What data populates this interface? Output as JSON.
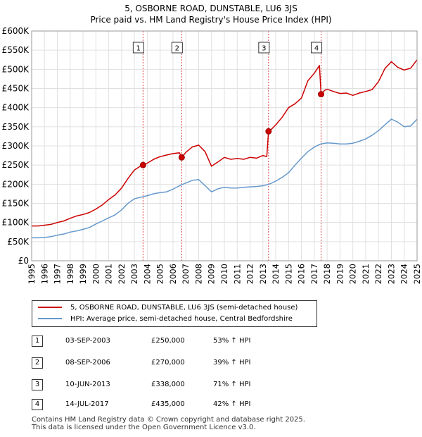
{
  "title_line1": "5, OSBORNE ROAD, DUNSTABLE, LU6 3JS",
  "title_line2": "Price paid vs. HM Land Registry's House Price Index (HPI)",
  "chart_data": {
    "type": "line",
    "title": "5, OSBORNE ROAD, DUNSTABLE, LU6 3JS",
    "subtitle": "Price paid vs. HM Land Registry's House Price Index (HPI)",
    "xlim": [
      1995,
      2025
    ],
    "ylim": [
      0,
      600000
    ],
    "x_ticks": [
      1995,
      1996,
      1997,
      1998,
      1999,
      2000,
      2001,
      2002,
      2003,
      2004,
      2005,
      2006,
      2007,
      2008,
      2009,
      2010,
      2011,
      2012,
      2013,
      2014,
      2015,
      2016,
      2017,
      2018,
      2019,
      2020,
      2021,
      2022,
      2023,
      2024,
      2025
    ],
    "y_ticks": [
      {
        "value": 0,
        "label": "£0"
      },
      {
        "value": 50000,
        "label": "£50K"
      },
      {
        "value": 100000,
        "label": "£100K"
      },
      {
        "value": 150000,
        "label": "£150K"
      },
      {
        "value": 200000,
        "label": "£200K"
      },
      {
        "value": 250000,
        "label": "£250K"
      },
      {
        "value": 300000,
        "label": "£300K"
      },
      {
        "value": 350000,
        "label": "£350K"
      },
      {
        "value": 400000,
        "label": "£400K"
      },
      {
        "value": 450000,
        "label": "£450K"
      },
      {
        "value": 500000,
        "label": "£500K"
      },
      {
        "value": 550000,
        "label": "£550K"
      },
      {
        "value": 600000,
        "label": "£600K"
      }
    ],
    "grid": true,
    "series": [
      {
        "name": "5, OSBORNE ROAD, DUNSTABLE, LU6 3JS (semi-detached house)",
        "color": "#cc0000",
        "x": [
          1995.0,
          1995.5,
          1996.0,
          1996.5,
          1997.0,
          1997.5,
          1998.0,
          1998.5,
          1999.0,
          1999.5,
          2000.0,
          2000.5,
          2001.0,
          2001.5,
          2002.0,
          2002.5,
          2003.0,
          2003.5,
          2003.67,
          2004.0,
          2004.5,
          2005.0,
          2005.5,
          2006.0,
          2006.5,
          2006.68,
          2007.0,
          2007.5,
          2008.0,
          2008.5,
          2009.0,
          2009.5,
          2010.0,
          2010.5,
          2011.0,
          2011.5,
          2012.0,
          2012.5,
          2013.0,
          2013.3,
          2013.44,
          2013.7,
          2014.0,
          2014.5,
          2015.0,
          2015.5,
          2016.0,
          2016.5,
          2017.0,
          2017.4,
          2017.53,
          2017.8,
          2018.0,
          2018.5,
          2019.0,
          2019.5,
          2020.0,
          2020.5,
          2021.0,
          2021.5,
          2022.0,
          2022.5,
          2023.0,
          2023.5,
          2024.0,
          2024.5,
          2025.0
        ],
        "values": [
          91000,
          91000,
          93000,
          95000,
          100000,
          104000,
          111000,
          117000,
          121000,
          126000,
          135000,
          146000,
          160000,
          172000,
          190000,
          215000,
          237000,
          248000,
          250000,
          255000,
          265000,
          272000,
          276000,
          280000,
          282000,
          270000,
          283000,
          297000,
          302000,
          285000,
          247000,
          258000,
          270000,
          265000,
          267000,
          265000,
          270000,
          268000,
          275000,
          272000,
          338000,
          345000,
          355000,
          375000,
          400000,
          410000,
          425000,
          470000,
          490000,
          510000,
          435000,
          445000,
          448000,
          442000,
          437000,
          438000,
          432000,
          438000,
          442000,
          447000,
          468000,
          502000,
          520000,
          505000,
          498000,
          503000,
          525000
        ]
      },
      {
        "name": "HPI: Average price, semi-detached house, Central Bedfordshire",
        "color": "#6699cc",
        "x": [
          1995.0,
          1995.5,
          1996.0,
          1996.5,
          1997.0,
          1997.5,
          1998.0,
          1998.5,
          1999.0,
          1999.5,
          2000.0,
          2000.5,
          2001.0,
          2001.5,
          2002.0,
          2002.5,
          2003.0,
          2003.5,
          2004.0,
          2004.5,
          2005.0,
          2005.5,
          2006.0,
          2006.5,
          2007.0,
          2007.5,
          2008.0,
          2008.5,
          2009.0,
          2009.5,
          2010.0,
          2010.5,
          2011.0,
          2011.5,
          2012.0,
          2012.5,
          2013.0,
          2013.5,
          2014.0,
          2014.5,
          2015.0,
          2015.5,
          2016.0,
          2016.5,
          2017.0,
          2017.5,
          2018.0,
          2018.5,
          2019.0,
          2019.5,
          2020.0,
          2020.5,
          2021.0,
          2021.5,
          2022.0,
          2022.5,
          2023.0,
          2023.5,
          2024.0,
          2024.5,
          2025.0
        ],
        "values": [
          60000,
          60000,
          61000,
          63000,
          67000,
          70000,
          75000,
          78000,
          82000,
          87000,
          96000,
          104000,
          112000,
          120000,
          133000,
          150000,
          162000,
          166000,
          170000,
          175000,
          178000,
          180000,
          187000,
          196000,
          203000,
          210000,
          212000,
          196000,
          180000,
          188000,
          192000,
          190000,
          190000,
          192000,
          193000,
          194000,
          196000,
          200000,
          208000,
          218000,
          230000,
          250000,
          268000,
          285000,
          297000,
          305000,
          308000,
          307000,
          305000,
          305000,
          307000,
          312000,
          318000,
          328000,
          340000,
          355000,
          370000,
          362000,
          350000,
          352000,
          370000
        ]
      }
    ],
    "sales": [
      {
        "label": "1",
        "x": 2003.67,
        "value": 250000,
        "date": "03-SEP-2003",
        "price": "£250,000",
        "hpi": "53% ↑ HPI"
      },
      {
        "label": "2",
        "x": 2006.68,
        "value": 270000,
        "date": "08-SEP-2006",
        "price": "£270,000",
        "hpi": "39% ↑ HPI"
      },
      {
        "label": "3",
        "x": 2013.44,
        "value": 338000,
        "date": "10-JUN-2013",
        "price": "£338,000",
        "hpi": "71% ↑ HPI"
      },
      {
        "label": "4",
        "x": 2017.53,
        "value": 435000,
        "date": "14-JUL-2017",
        "price": "£435,000",
        "hpi": "42% ↑ HPI"
      }
    ]
  },
  "footer_line1": "Contains HM Land Registry data © Crown copyright and database right 2025.",
  "footer_line2": "This data is licensed under the Open Government Licence v3.0."
}
